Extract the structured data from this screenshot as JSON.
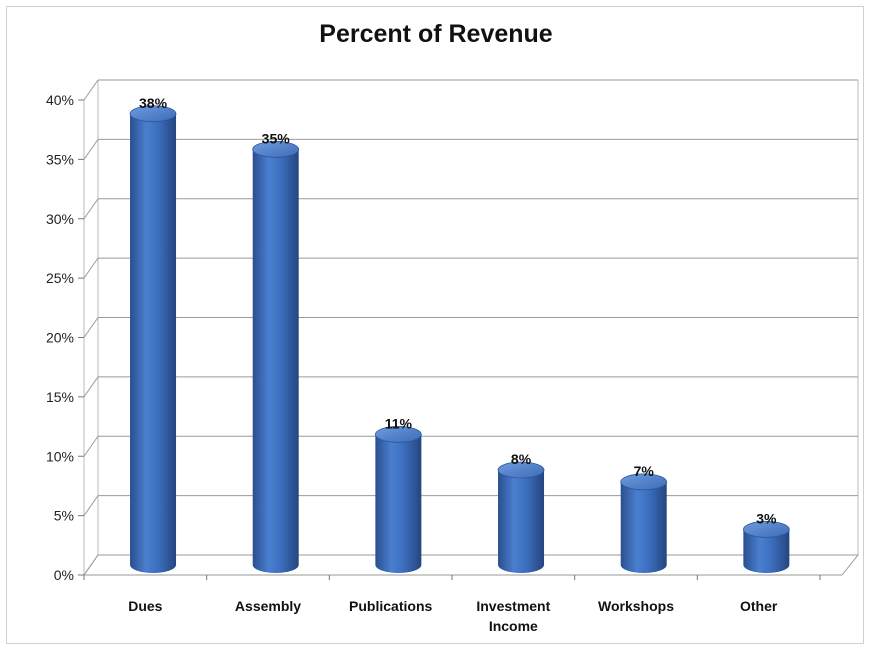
{
  "chart_data": {
    "type": "bar",
    "title": "Percent of Revenue",
    "categories": [
      "Dues",
      "Assembly",
      "Publications",
      "Investment Income",
      "Workshops",
      "Other"
    ],
    "category_lines": [
      [
        "Dues"
      ],
      [
        "Assembly"
      ],
      [
        "Publications"
      ],
      [
        "Investment",
        "Income"
      ],
      [
        "Workshops"
      ],
      [
        "Other"
      ]
    ],
    "values": [
      38,
      35,
      11,
      8,
      7,
      3
    ],
    "data_labels": [
      "38%",
      "35%",
      "11%",
      "8%",
      "7%",
      "3%"
    ],
    "y_ticks": [
      "0%",
      "5%",
      "10%",
      "15%",
      "20%",
      "25%",
      "30%",
      "35%",
      "40%"
    ],
    "ylim": [
      0,
      40
    ],
    "xlabel": "",
    "ylabel": "",
    "grid": true,
    "style": "3d-cylinder",
    "bar_color": "#3d6fbf"
  }
}
